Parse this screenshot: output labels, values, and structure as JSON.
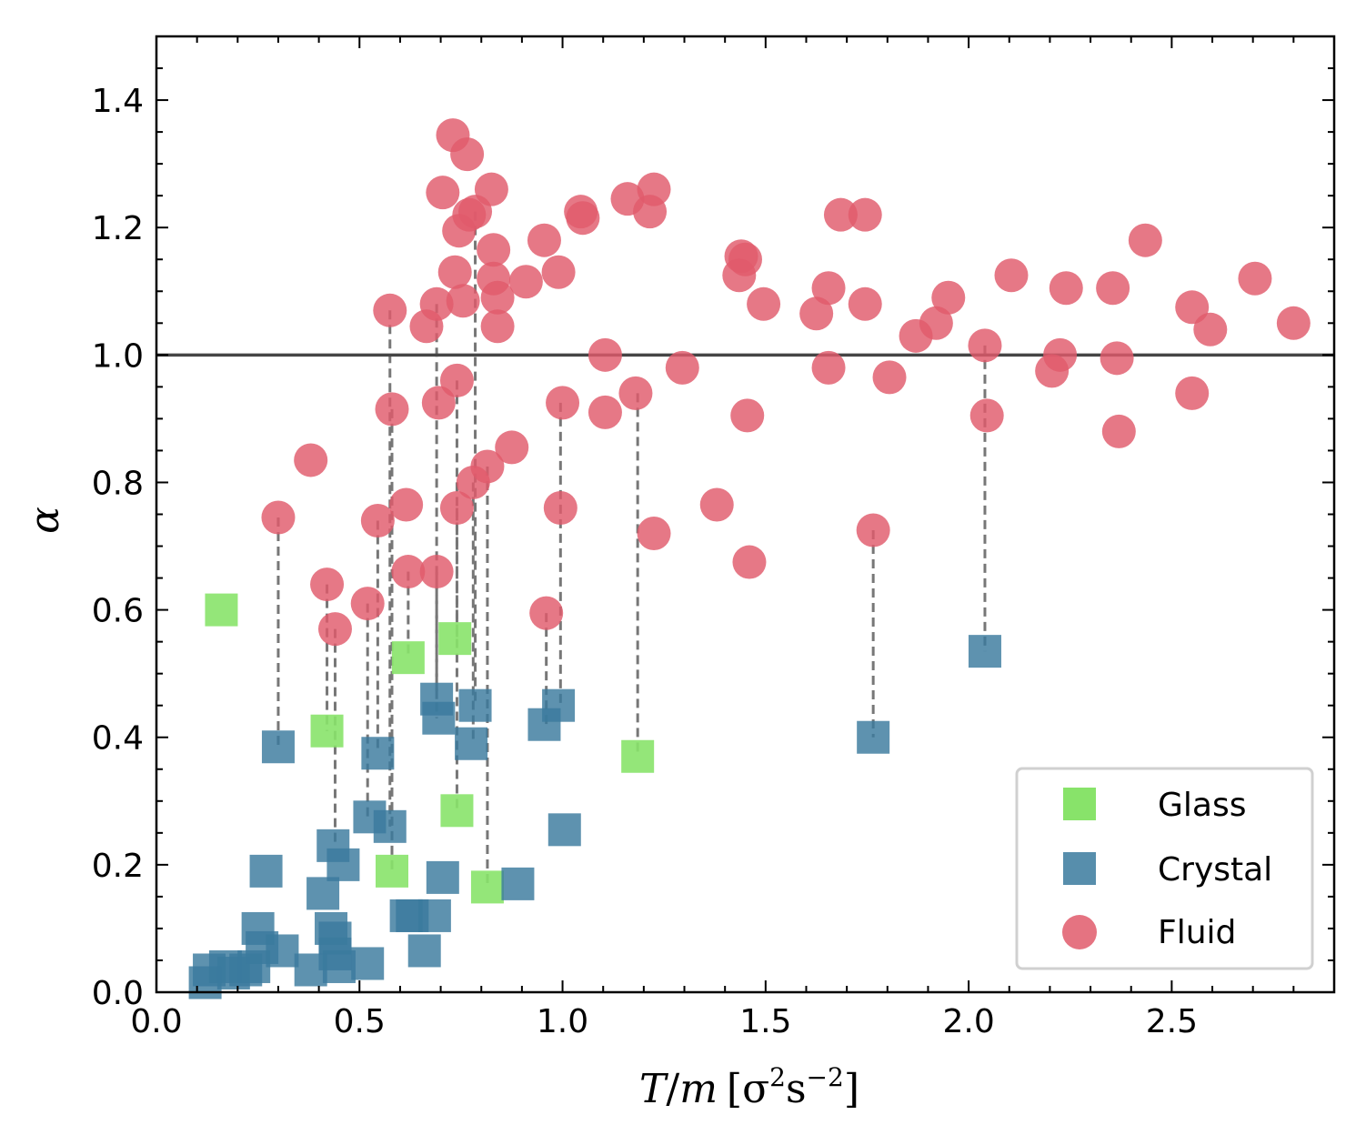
{
  "chart_data": {
    "type": "scatter",
    "title": "",
    "xlabel": "T/m [σ²s⁻²]",
    "xlabel_parts": {
      "var1": "T",
      "slash": "/",
      "var2": "m",
      "unit_open": "[σ",
      "sup1": "2",
      "unit_mid": "s",
      "sup2": "−2",
      "unit_close": "]"
    },
    "ylabel": "α",
    "xlim": [
      0.0,
      2.9
    ],
    "ylim": [
      0.0,
      1.5
    ],
    "xticks": [
      "0.0",
      "0.5",
      "1.0",
      "1.5",
      "2.0",
      "2.5"
    ],
    "xtick_values": [
      0.0,
      0.5,
      1.0,
      1.5,
      2.0,
      2.5
    ],
    "yticks": [
      "0.0",
      "0.2",
      "0.4",
      "0.6",
      "0.8",
      "1.0",
      "1.2",
      "1.4"
    ],
    "ytick_values": [
      0.0,
      0.2,
      0.4,
      0.6,
      0.8,
      1.0,
      1.2,
      1.4
    ],
    "reference_line": {
      "y": 1.0,
      "color": "#454545"
    },
    "legend": {
      "location": "bottom-right",
      "entries": [
        "Glass",
        "Crystal",
        "Fluid"
      ]
    },
    "series": [
      {
        "name": "Glass",
        "marker": "square",
        "color": "#88e36a",
        "points": [
          [
            0.16,
            0.6
          ],
          [
            0.42,
            0.41
          ],
          [
            0.58,
            0.19
          ],
          [
            0.62,
            0.525
          ],
          [
            0.735,
            0.555
          ],
          [
            0.74,
            0.285
          ],
          [
            0.815,
            0.165
          ],
          [
            1.185,
            0.37
          ]
        ]
      },
      {
        "name": "Crystal",
        "marker": "square",
        "color": "#3a7a9e",
        "points": [
          [
            0.12,
            0.015
          ],
          [
            0.13,
            0.035
          ],
          [
            0.17,
            0.04
          ],
          [
            0.19,
            0.03
          ],
          [
            0.22,
            0.035
          ],
          [
            0.24,
            0.04
          ],
          [
            0.25,
            0.1
          ],
          [
            0.26,
            0.07
          ],
          [
            0.27,
            0.19
          ],
          [
            0.31,
            0.065
          ],
          [
            0.3,
            0.385
          ],
          [
            0.38,
            0.035
          ],
          [
            0.41,
            0.155
          ],
          [
            0.43,
            0.1
          ],
          [
            0.44,
            0.085
          ],
          [
            0.435,
            0.23
          ],
          [
            0.44,
            0.06
          ],
          [
            0.45,
            0.04
          ],
          [
            0.46,
            0.2
          ],
          [
            0.52,
            0.045
          ],
          [
            0.525,
            0.275
          ],
          [
            0.545,
            0.375
          ],
          [
            0.575,
            0.26
          ],
          [
            0.615,
            0.12
          ],
          [
            0.63,
            0.12
          ],
          [
            0.66,
            0.065
          ],
          [
            0.685,
            0.12
          ],
          [
            0.69,
            0.46
          ],
          [
            0.695,
            0.43
          ],
          [
            0.705,
            0.18
          ],
          [
            0.775,
            0.39
          ],
          [
            0.785,
            0.45
          ],
          [
            0.89,
            0.17
          ],
          [
            0.955,
            0.42
          ],
          [
            0.99,
            0.45
          ],
          [
            1.005,
            0.255
          ],
          [
            1.765,
            0.4
          ],
          [
            2.04,
            0.535
          ]
        ]
      },
      {
        "name": "Fluid",
        "marker": "circle",
        "color": "#e05a6b",
        "points": [
          [
            0.3,
            0.745
          ],
          [
            0.38,
            0.835
          ],
          [
            0.42,
            0.64
          ],
          [
            0.44,
            0.57
          ],
          [
            0.52,
            0.61
          ],
          [
            0.545,
            0.74
          ],
          [
            0.575,
            1.07
          ],
          [
            0.58,
            0.915
          ],
          [
            0.615,
            0.765
          ],
          [
            0.62,
            0.66
          ],
          [
            0.665,
            1.045
          ],
          [
            0.69,
            1.08
          ],
          [
            0.695,
            0.925
          ],
          [
            0.69,
            0.66
          ],
          [
            0.705,
            1.255
          ],
          [
            0.73,
            1.345
          ],
          [
            0.735,
            1.13
          ],
          [
            0.74,
            0.96
          ],
          [
            0.74,
            0.76
          ],
          [
            0.745,
            1.195
          ],
          [
            0.755,
            1.085
          ],
          [
            0.765,
            1.315
          ],
          [
            0.77,
            1.22
          ],
          [
            0.78,
            0.8
          ],
          [
            0.785,
            1.225
          ],
          [
            0.815,
            0.825
          ],
          [
            0.825,
            1.26
          ],
          [
            0.83,
            1.165
          ],
          [
            0.83,
            1.12
          ],
          [
            0.84,
            1.09
          ],
          [
            0.84,
            1.045
          ],
          [
            0.875,
            0.855
          ],
          [
            0.91,
            1.115
          ],
          [
            0.955,
            1.18
          ],
          [
            0.96,
            0.595
          ],
          [
            0.99,
            1.13
          ],
          [
            0.995,
            0.76
          ],
          [
            1.0,
            0.925
          ],
          [
            1.045,
            1.225
          ],
          [
            1.05,
            1.215
          ],
          [
            1.105,
            1.0
          ],
          [
            1.105,
            0.91
          ],
          [
            1.16,
            1.245
          ],
          [
            1.18,
            0.94
          ],
          [
            1.215,
            1.225
          ],
          [
            1.225,
            1.26
          ],
          [
            1.225,
            0.72
          ],
          [
            1.295,
            0.98
          ],
          [
            1.38,
            0.765
          ],
          [
            1.435,
            1.125
          ],
          [
            1.44,
            1.155
          ],
          [
            1.45,
            1.15
          ],
          [
            1.455,
            0.905
          ],
          [
            1.46,
            0.675
          ],
          [
            1.495,
            1.08
          ],
          [
            1.625,
            1.065
          ],
          [
            1.655,
            1.105
          ],
          [
            1.655,
            0.98
          ],
          [
            1.685,
            1.22
          ],
          [
            1.745,
            1.22
          ],
          [
            1.745,
            1.08
          ],
          [
            1.765,
            0.725
          ],
          [
            1.805,
            0.965
          ],
          [
            1.87,
            1.03
          ],
          [
            1.92,
            1.05
          ],
          [
            1.95,
            1.09
          ],
          [
            2.04,
            1.015
          ],
          [
            2.045,
            0.905
          ],
          [
            2.105,
            1.125
          ],
          [
            2.205,
            0.975
          ],
          [
            2.225,
            1.0
          ],
          [
            2.24,
            1.105
          ],
          [
            2.355,
            1.105
          ],
          [
            2.365,
            0.995
          ],
          [
            2.37,
            0.88
          ],
          [
            2.435,
            1.18
          ],
          [
            2.55,
            1.075
          ],
          [
            2.55,
            0.94
          ],
          [
            2.595,
            1.04
          ],
          [
            2.705,
            1.12
          ],
          [
            2.8,
            1.05
          ]
        ]
      }
    ],
    "connectors": {
      "style": "dashed",
      "color": "#777777",
      "segments": [
        [
          0.3,
          0.745,
          0.385
        ],
        [
          0.42,
          0.64,
          0.41
        ],
        [
          0.44,
          0.57,
          0.23
        ],
        [
          0.52,
          0.61,
          0.275
        ],
        [
          0.545,
          0.74,
          0.375
        ],
        [
          0.575,
          1.07,
          0.26
        ],
        [
          0.58,
          0.915,
          0.19
        ],
        [
          0.62,
          0.66,
          0.525
        ],
        [
          0.69,
          1.08,
          0.46
        ],
        [
          0.69,
          0.66,
          0.43
        ],
        [
          0.74,
          0.96,
          0.555
        ],
        [
          0.74,
          0.76,
          0.285
        ],
        [
          0.78,
          0.8,
          0.39
        ],
        [
          0.785,
          1.225,
          0.45
        ],
        [
          0.815,
          0.825,
          0.165
        ],
        [
          0.96,
          0.595,
          0.42
        ],
        [
          0.995,
          0.925,
          0.45
        ],
        [
          1.185,
          0.94,
          0.37
        ],
        [
          1.765,
          0.725,
          0.4
        ],
        [
          2.04,
          1.015,
          0.535
        ]
      ]
    }
  }
}
